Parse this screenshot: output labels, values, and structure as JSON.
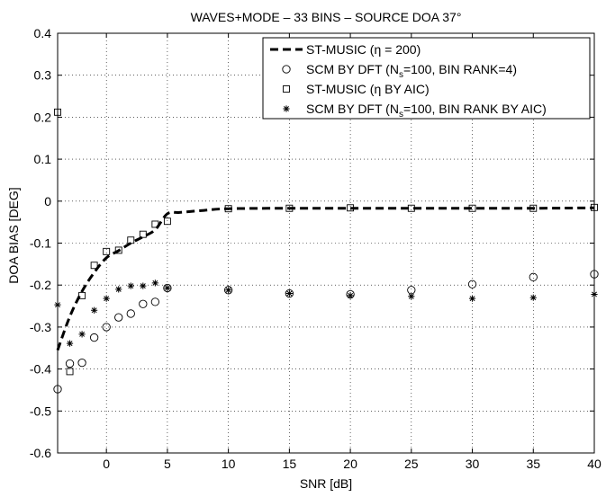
{
  "chart_data": {
    "type": "scatter",
    "title": "WAVES+MODE – 33 BINS – SOURCE DOA 37°",
    "xlabel": "SNR [dB]",
    "ylabel": "DOA BIAS [DEG]",
    "xlim": [
      -4,
      40
    ],
    "ylim": [
      -0.6,
      0.4
    ],
    "xticks": [
      0,
      5,
      10,
      15,
      20,
      25,
      30,
      35,
      40
    ],
    "yticks": [
      -0.6,
      -0.5,
      -0.4,
      -0.3,
      -0.2,
      -0.1,
      0,
      0.1,
      0.2,
      0.3,
      0.4
    ],
    "xtick_labels": [
      "0",
      "5",
      "10",
      "15",
      "20",
      "25",
      "30",
      "35",
      "40"
    ],
    "ytick_labels": [
      "-0.6",
      "-0.5",
      "-0.4",
      "-0.3",
      "-0.2",
      "-0.1",
      "0",
      "0.1",
      "0.2",
      "0.3",
      "0.4"
    ],
    "grid": true,
    "legend_position": "top-right",
    "series": [
      {
        "name": "ST-MUSIC (η = 200)",
        "legend_main": "ST-MUSIC (",
        "legend_sym": "η",
        "legend_tail": " = 200)",
        "style": "dashed-line",
        "x": [
          -4,
          -3,
          -2,
          -1,
          0,
          1,
          2,
          3,
          4,
          5,
          6,
          8,
          10,
          15,
          20,
          25,
          30,
          35,
          40
        ],
        "y": [
          -0.355,
          -0.275,
          -0.215,
          -0.17,
          -0.135,
          -0.118,
          -0.1,
          -0.085,
          -0.068,
          -0.03,
          -0.027,
          -0.022,
          -0.018,
          -0.017,
          -0.017,
          -0.017,
          -0.017,
          -0.017,
          -0.016
        ]
      },
      {
        "name": "SCM BY DFT (Ns=100, BIN RANK=4)",
        "legend_main": "SCM BY DFT (N",
        "legend_sub": "s",
        "legend_tail": "=100, BIN RANK=4)",
        "marker": "circle",
        "x": [
          -4,
          -3,
          -2,
          -1,
          0,
          1,
          2,
          3,
          4,
          5,
          10,
          15,
          20,
          25,
          30,
          35,
          40
        ],
        "y": [
          -0.448,
          -0.387,
          -0.385,
          -0.325,
          -0.3,
          -0.277,
          -0.268,
          -0.245,
          -0.24,
          -0.207,
          -0.212,
          -0.22,
          -0.222,
          -0.212,
          -0.198,
          -0.181,
          -0.174
        ]
      },
      {
        "name": "ST-MUSIC (η BY AIC)",
        "legend_main": "ST-MUSIC (",
        "legend_sym": "η",
        "legend_tail": " BY AIC)",
        "marker": "square",
        "x": [
          -4,
          -3,
          -2,
          -1,
          0,
          1,
          2,
          3,
          4,
          5,
          10,
          15,
          20,
          25,
          30,
          35,
          40
        ],
        "y": [
          0.212,
          -0.406,
          -0.225,
          -0.153,
          -0.12,
          -0.117,
          -0.093,
          -0.079,
          -0.055,
          -0.048,
          -0.018,
          -0.017,
          -0.016,
          -0.017,
          -0.017,
          -0.017,
          -0.015
        ]
      },
      {
        "name": "SCM BY DFT (Ns=100, BIN RANK BY AIC)",
        "legend_main": "SCM BY DFT (N",
        "legend_sub": "s",
        "legend_tail": "=100, BIN RANK BY AIC)",
        "marker": "star",
        "x": [
          -4,
          -3,
          -2,
          -1,
          0,
          1,
          2,
          3,
          4,
          5,
          10,
          15,
          20,
          25,
          30,
          35,
          40
        ],
        "y": [
          -0.247,
          -0.339,
          -0.317,
          -0.26,
          -0.232,
          -0.21,
          -0.202,
          -0.202,
          -0.195,
          -0.207,
          -0.212,
          -0.22,
          -0.225,
          -0.227,
          -0.232,
          -0.23,
          -0.222
        ]
      }
    ]
  }
}
